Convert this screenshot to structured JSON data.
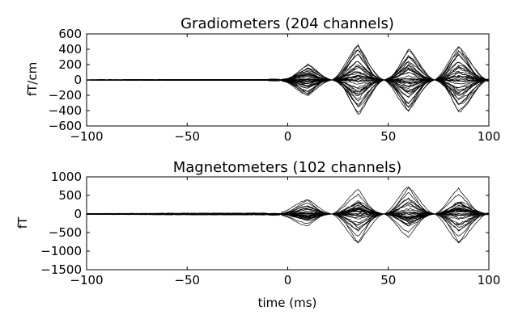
{
  "chart_data": [
    {
      "type": "line",
      "title": "Gradiometers (204 channels)",
      "xlabel": "",
      "ylabel": "fT/cm",
      "xlim": [
        -100,
        100
      ],
      "ylim": [
        -600,
        600
      ],
      "xticks": [
        "−100",
        "−50",
        "0",
        "50",
        "100"
      ],
      "yticks": [
        "600",
        "400",
        "200",
        "0",
        "−200",
        "−400",
        "−600"
      ],
      "xtick_values": [
        -100,
        -50,
        0,
        50,
        100
      ],
      "ytick_values": [
        600,
        400,
        200,
        0,
        -200,
        -400,
        -600
      ],
      "channel_count": 204,
      "envelope": {
        "description_points_ms": [
          -100,
          -10,
          0,
          10,
          22,
          35,
          48,
          60,
          73,
          85,
          100
        ],
        "peak_amplitude": [
          5,
          10,
          60,
          220,
          10,
          490,
          10,
          440,
          10,
          470,
          30
        ]
      }
    },
    {
      "type": "line",
      "title": "Magnetometers (102 channels)",
      "xlabel": "time (ms)",
      "ylabel": "fT",
      "xlim": [
        -100,
        100
      ],
      "ylim": [
        -1500,
        1000
      ],
      "xticks": [
        "−100",
        "−50",
        "0",
        "50",
        "100"
      ],
      "yticks": [
        "1000",
        "500",
        "0",
        "−500",
        "−1000",
        "−1500"
      ],
      "xtick_values": [
        -100,
        -50,
        0,
        50,
        100
      ],
      "ytick_values": [
        1000,
        500,
        0,
        -500,
        -1000,
        -1500
      ],
      "channel_count": 102,
      "envelope": {
        "description_points_ms": [
          -100,
          -10,
          0,
          10,
          22,
          35,
          48,
          60,
          73,
          85,
          100
        ],
        "peak_amplitude": [
          20,
          40,
          200,
          500,
          20,
          1000,
          20,
          950,
          20,
          1000,
          50
        ]
      }
    }
  ],
  "colors": {
    "line": "#000000",
    "background": "#ffffff"
  }
}
